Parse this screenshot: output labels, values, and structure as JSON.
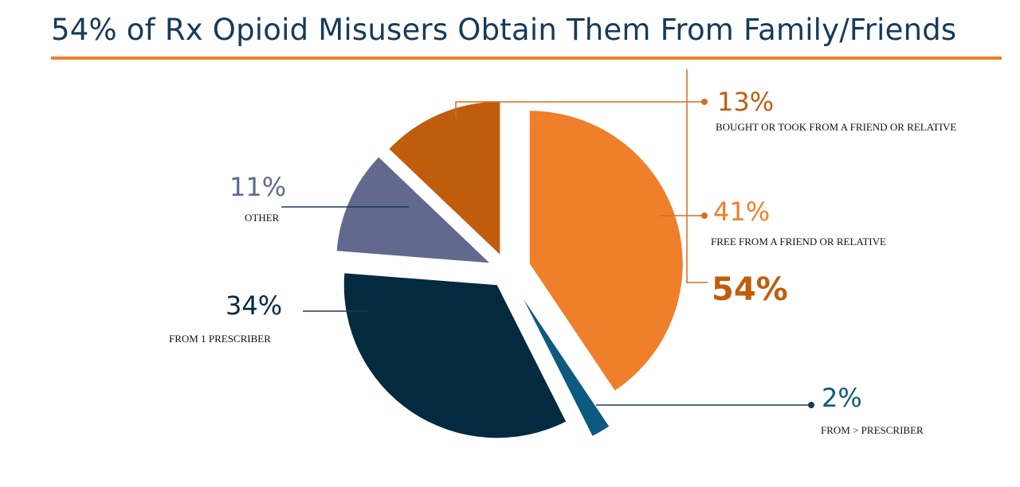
{
  "title": "54% of Rx Opioid Misusers Obtain Them From Family/Friends",
  "colors": {
    "title": "#173a5a",
    "rule": "#ef7f2a",
    "free_friend": "#ef7f2a",
    "bought_friend": "#c05d0d",
    "other": "#62698e",
    "one_prescriber": "#042a3f",
    "more_prescriber": "#0d5a80",
    "connector_orange": "#d46f1f",
    "connector_dark": "#1b3a55"
  },
  "chart_data": {
    "type": "pie",
    "title": "54% of Rx Opioid Misusers Obtain Them From Family/Friends",
    "slices": [
      {
        "label": "FREE FROM A FRIEND OR RELATIVE",
        "value": 41,
        "display": "41%",
        "color": "#ef7f2a"
      },
      {
        "label": "FROM > PRESCRIBER",
        "value": 2,
        "display": "2%",
        "color": "#0d5a80"
      },
      {
        "label": "FROM 1 PRESCRIBER",
        "value": 34,
        "display": "34%",
        "color": "#042a3f"
      },
      {
        "label": "OTHER",
        "value": 11,
        "display": "11%",
        "color": "#62698e"
      },
      {
        "label": "BOUGHT OR TOOK FROM A FRIEND OR RELATIVE",
        "value": 13,
        "display": "13%",
        "color": "#c05d0d"
      }
    ],
    "group_total": {
      "display": "54%",
      "value": 54,
      "members": [
        "FREE FROM A FRIEND OR RELATIVE",
        "BOUGHT OR TOOK FROM A FRIEND OR RELATIVE"
      ]
    }
  }
}
